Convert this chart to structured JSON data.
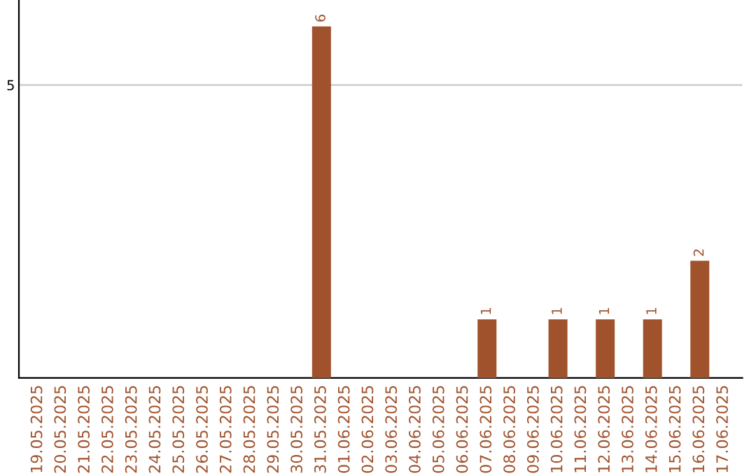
{
  "chart_data": {
    "type": "bar",
    "categories": [
      "19.05.2025",
      "20.05.2025",
      "21.05.2025",
      "22.05.2025",
      "23.05.2025",
      "24.05.2025",
      "25.05.2025",
      "26.05.2025",
      "27.05.2025",
      "28.05.2025",
      "29.05.2025",
      "30.05.2025",
      "31.05.2025",
      "01.06.2025",
      "02.06.2025",
      "03.06.2025",
      "04.06.2025",
      "05.06.2025",
      "06.06.2025",
      "07.06.2025",
      "08.06.2025",
      "09.06.2025",
      "10.06.2025",
      "11.06.2025",
      "12.06.2025",
      "13.06.2025",
      "14.06.2025",
      "15.06.2025",
      "16.06.2025",
      "17.06.2025"
    ],
    "values": [
      null,
      null,
      null,
      null,
      null,
      null,
      null,
      null,
      null,
      null,
      null,
      null,
      6,
      null,
      null,
      null,
      null,
      null,
      null,
      1,
      null,
      null,
      1,
      null,
      1,
      null,
      1,
      null,
      2,
      null
    ],
    "data_labels": true,
    "color": "#a0522d",
    "ylim": [
      0,
      6.45
    ],
    "yticks": [
      5
    ],
    "grid": "y"
  }
}
